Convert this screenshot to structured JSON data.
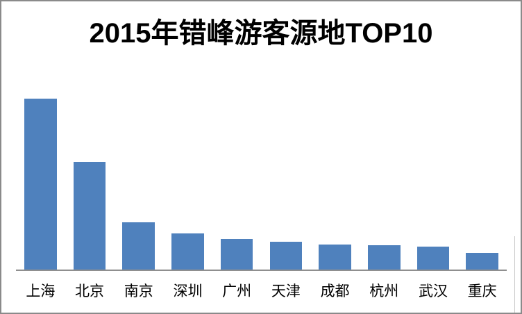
{
  "window": {
    "background_color": "#ffffff",
    "border_color": "#8a8a8a"
  },
  "chart_data": {
    "type": "bar",
    "title": "2015年错峰游客源地TOP10",
    "categories": [
      "上海",
      "北京",
      "南京",
      "深圳",
      "广州",
      "天津",
      "成都",
      "杭州",
      "武汉",
      "重庆"
    ],
    "values": [
      100,
      63,
      27.6,
      21.1,
      17.9,
      16.3,
      14.6,
      14.2,
      13.4,
      9.8
    ],
    "value_note": "Chart shows no y-axis, gridlines or data labels; values are relative indices estimated from bar heights with tallest bar (上海) = 100",
    "xlabel": "",
    "ylabel": "",
    "ylim": [
      0,
      100
    ],
    "grid": false,
    "legend": null,
    "bar_color": "#4F81BD",
    "axis_line_color": "#8f8f8f",
    "title_color": "#000000",
    "label_color": "#000000"
  }
}
